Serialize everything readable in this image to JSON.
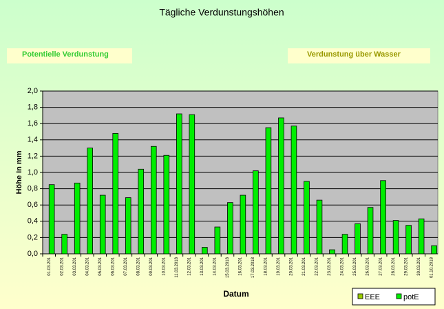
{
  "chart_data": {
    "type": "bar",
    "title": "Tägliche Verdunstungshöhen",
    "annotations": [
      "Potentielle Verdunstung",
      "Verdunstung über Wasser"
    ],
    "y_label": "Höhe in mm",
    "x_label": "Datum",
    "categories": [
      "01.03.201",
      "02.03.201",
      "03.03.201",
      "04.03.201",
      "05.03.201",
      "06.03.201",
      "07.03.201",
      "08.03.201",
      "09.03.201",
      "10.03.201",
      "11.03.2018",
      "12.03.201",
      "13.03.201",
      "14.03.201",
      "15.03.2018",
      "16.03.201",
      "17.03.2018",
      "18.03.201",
      "19.03.201",
      "20.03.201",
      "21.03.201",
      "22.03.201",
      "23.03.201",
      "24.03.201",
      "25.03.201",
      "26.03.201",
      "27.03.201",
      "28.03.201",
      "29.03.201",
      "30.03.201",
      "01.10.2018"
    ],
    "series": [
      {
        "name": "EEE",
        "color": "#99cc00",
        "values": [
          null,
          null,
          null,
          null,
          null,
          null,
          null,
          null,
          null,
          null,
          null,
          null,
          null,
          null,
          null,
          null,
          null,
          null,
          null,
          null,
          null,
          null,
          null,
          null,
          null,
          null,
          null,
          null,
          null,
          null,
          null
        ]
      },
      {
        "name": "potE",
        "color": "#00ee00",
        "values": [
          0.85,
          0.24,
          0.87,
          1.3,
          0.72,
          1.48,
          0.69,
          1.04,
          1.32,
          1.21,
          1.72,
          1.71,
          0.08,
          0.33,
          0.63,
          0.72,
          1.02,
          1.55,
          1.67,
          1.57,
          0.89,
          0.66,
          0.05,
          0.24,
          0.37,
          0.57,
          0.9,
          0.41,
          0.35,
          0.43,
          0.1
        ]
      }
    ],
    "ylim": [
      0,
      2
    ],
    "yticks": [
      {
        "value": 0,
        "label": "0,0"
      },
      {
        "value": 0.2,
        "label": "0,2"
      },
      {
        "value": 0.4,
        "label": "0,4"
      },
      {
        "value": 0.6,
        "label": "0,6"
      },
      {
        "value": 0.8,
        "label": "0,8"
      },
      {
        "value": 1,
        "label": "1,0"
      },
      {
        "value": 1.2,
        "label": "1,2"
      },
      {
        "value": 1.4,
        "label": "1,4"
      },
      {
        "value": 1.6,
        "label": "1,6"
      },
      {
        "value": 1.8,
        "label": "1,8"
      },
      {
        "value": 2,
        "label": "2,0"
      }
    ],
    "grid": true,
    "legend": "bottom-right"
  }
}
